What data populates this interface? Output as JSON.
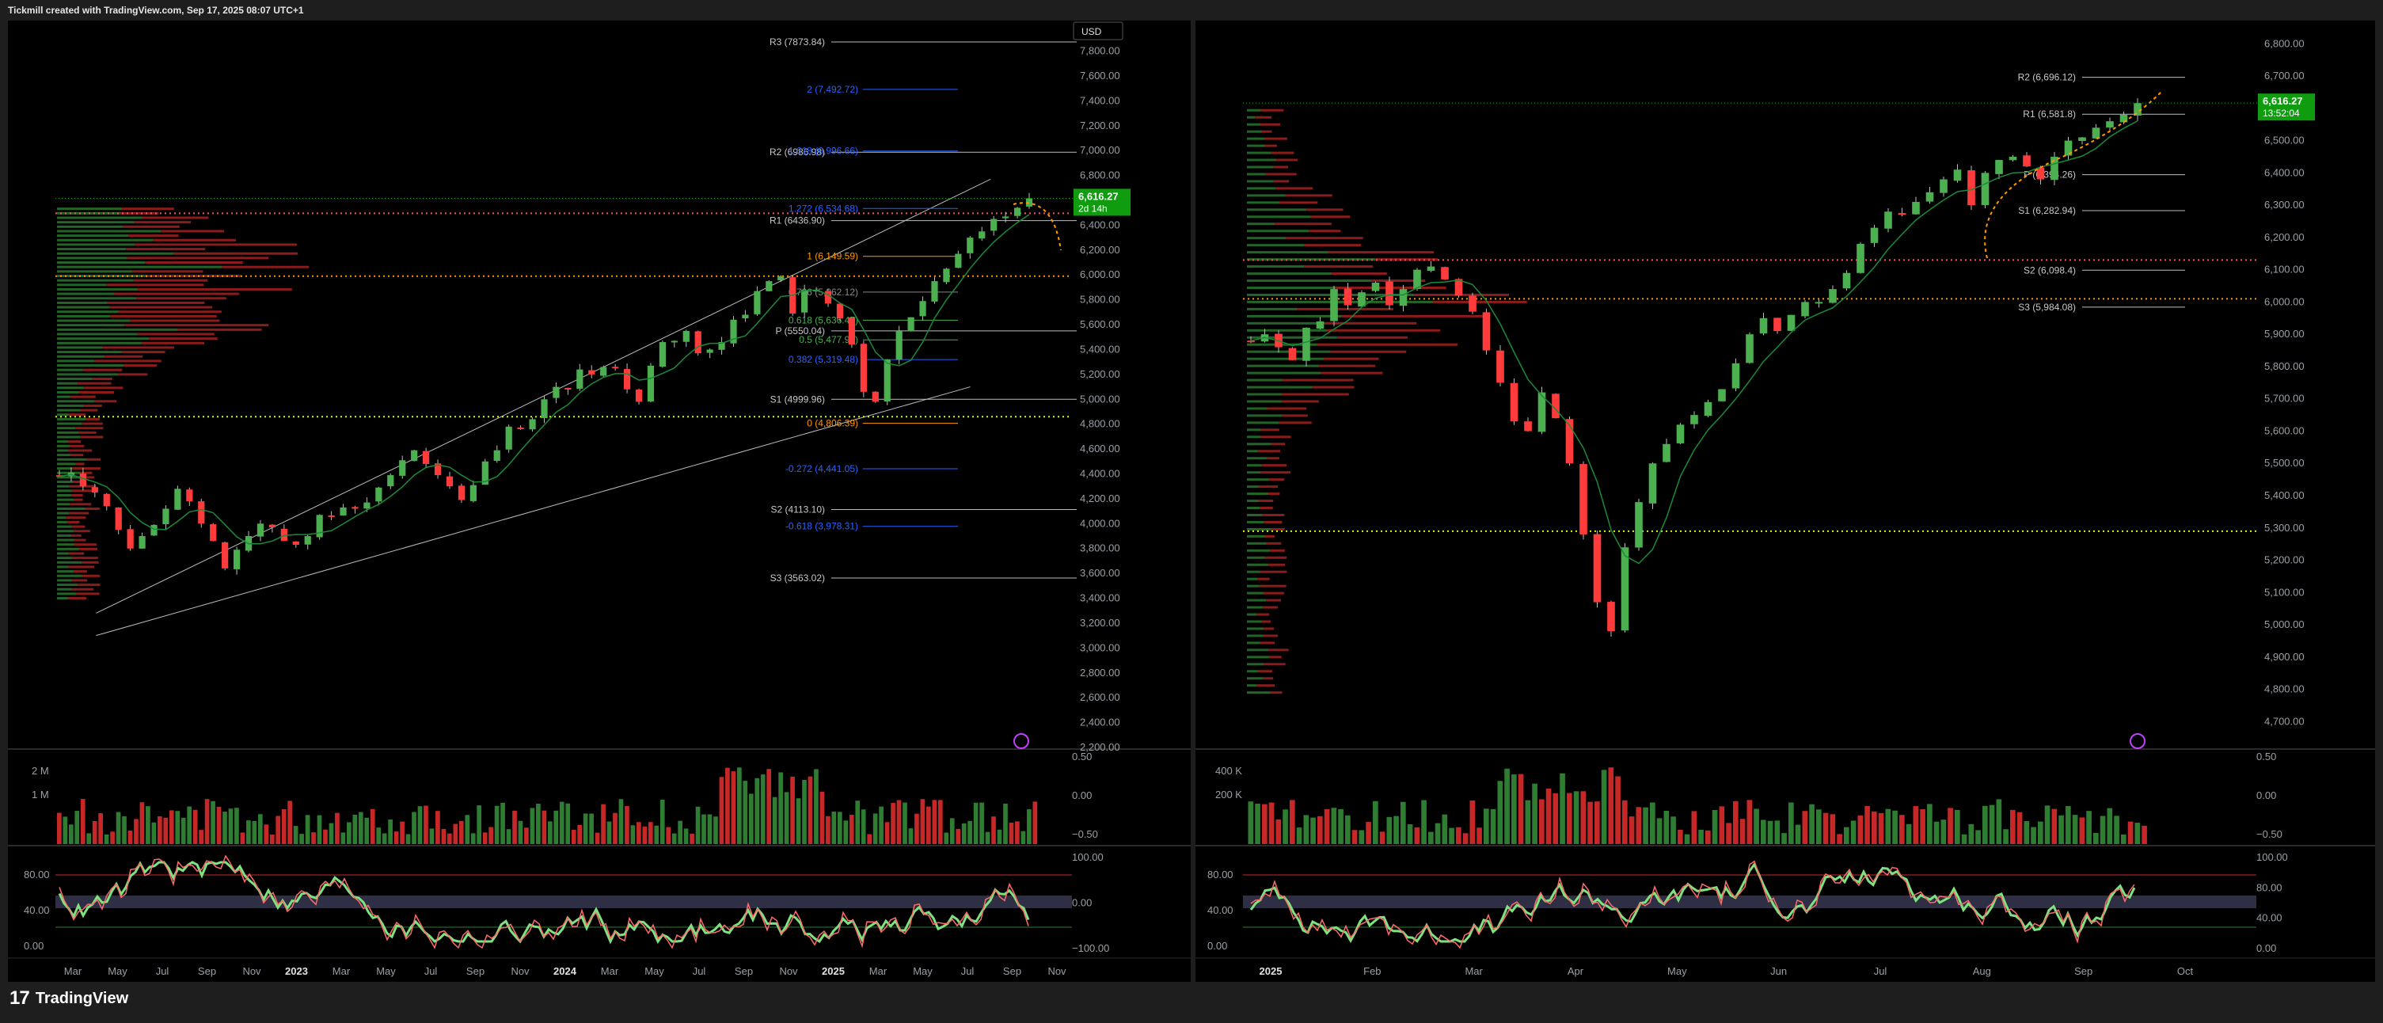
{
  "header": {
    "text": "Tickmill created with TradingView.com, Sep 17, 2025 08:07 UTC+1"
  },
  "footer": {
    "logo_glyph": "17",
    "brand": "TradingView"
  },
  "colors": {
    "bull": "#2e7d32",
    "bull_bright": "#4caf50",
    "bear": "#c62828",
    "bear_bright": "#ff3b3b",
    "orange": "#ff9800",
    "blue": "#2962ff",
    "grid_text": "#9aa0a6",
    "price_badge": "#0f9d0f"
  },
  "chart_data": [
    {
      "id": "left",
      "type": "candlestick",
      "currency_label": "USD",
      "price_badge": {
        "value": "6,616.27",
        "sub": "2d 14h",
        "price": 6616.27
      },
      "y_axis_labels": [
        "7,800.00",
        "7,600.00",
        "7,400.00",
        "7,200.00",
        "7,000.00",
        "6,800.00",
        "6,600.00",
        "6,400.00",
        "6,200.00",
        "6,000.00",
        "5,800.00",
        "5,600.00",
        "5,400.00",
        "5,200.00",
        "5,000.00",
        "4,800.00",
        "4,600.00",
        "4,400.00",
        "4,200.00",
        "4,000.00",
        "3,800.00",
        "3,600.00",
        "3,400.00",
        "3,200.00",
        "3,000.00",
        "2,800.00",
        "2,600.00",
        "2,400.00",
        "2,200.00"
      ],
      "ylim": [
        2200,
        7950
      ],
      "x_axis_labels": [
        "Mar",
        "May",
        "Jul",
        "Sep",
        "Nov",
        "2023",
        "Mar",
        "May",
        "Jul",
        "Sep",
        "Nov",
        "2024",
        "Mar",
        "May",
        "Jul",
        "Sep",
        "Nov",
        "2025",
        "Mar",
        "May",
        "Jul",
        "Sep",
        "Nov"
      ],
      "x_axis_bold": [
        "2023",
        "2024",
        "2025"
      ],
      "pivot_levels": [
        {
          "label": "R3 (7873.84)",
          "value": 7873.84,
          "color": "#bdbdbd"
        },
        {
          "label": "R2 (6986.98)",
          "value": 6986.98,
          "color": "#bdbdbd"
        },
        {
          "label": "R1 (6436.90)",
          "value": 6436.9,
          "color": "#bdbdbd"
        },
        {
          "label": "P (5550.04)",
          "value": 5550.04,
          "color": "#bdbdbd"
        },
        {
          "label": "S1 (4999.96)",
          "value": 4999.96,
          "color": "#bdbdbd"
        },
        {
          "label": "S2 (4113.10)",
          "value": 4113.1,
          "color": "#bdbdbd"
        },
        {
          "label": "S3 (3563.02)",
          "value": 3563.02,
          "color": "#bdbdbd"
        }
      ],
      "fib_levels": [
        {
          "label": "2 (7,492.72)",
          "value": 7492.72,
          "color": "#2962ff"
        },
        {
          "label": "1.618 (6,996.66)",
          "value": 6996.66,
          "color": "#2962ff"
        },
        {
          "label": "1.272 (6,534.68)",
          "value": 6534.68,
          "color": "#2962ff"
        },
        {
          "label": "1 (6,149.59)",
          "value": 6149.59,
          "color": "#ff9800"
        },
        {
          "label": "0.786 (5,862.12)",
          "value": 5862.12,
          "color": "#888888"
        },
        {
          "label": "0.618 (5,636.47)",
          "value": 5636.47,
          "color": "#4caf50"
        },
        {
          "label": "0.5 (5,477.97)",
          "value": 5477.97,
          "color": "#4caf50"
        },
        {
          "label": "0.382 (5,319.48)",
          "value": 5319.48,
          "color": "#2962ff"
        },
        {
          "label": "0 (4,806.39)",
          "value": 4806.39,
          "color": "#ff9800"
        },
        {
          "label": "-0.272 (4,441.05)",
          "value": 4441.05,
          "color": "#2962ff"
        },
        {
          "label": "-0.618 (3,978.31)",
          "value": 3978.31,
          "color": "#2962ff"
        }
      ],
      "volume_axis": [
        "2 M",
        "1 M"
      ],
      "osc_axis_left": [
        "80.00",
        "40.00",
        "0.00"
      ],
      "osc_axis_right": [
        "100.00",
        "0.00",
        "−100.00"
      ],
      "vol_axis_right": [
        "0.50",
        "0.00",
        "−0.50"
      ],
      "close_series": [
        4380,
        4410,
        4300,
        4250,
        4140,
        3950,
        3800,
        3900,
        3990,
        4120,
        4280,
        4180,
        4000,
        3860,
        3640,
        3790,
        3900,
        4000,
        3970,
        3860,
        3830,
        3900,
        4070,
        4060,
        4130,
        4120,
        4170,
        4290,
        4390,
        4510,
        4590,
        4480,
        4390,
        4300,
        4190,
        4310,
        4500,
        4590,
        4780,
        4760,
        4840,
        5000,
        5100,
        5080,
        5240,
        5200,
        5260,
        5250,
        5080,
        4980,
        5270,
        5460,
        5470,
        5550,
        5370,
        5400,
        5460,
        5640,
        5680,
        5870,
        5950,
        5990,
        5690,
        5880,
        5880,
        5770,
        5650,
        5440,
        5060,
        4980,
        5320,
        5550,
        5660,
        5790,
        5950,
        6050,
        6170,
        6300,
        6350,
        6450,
        6470,
        6540,
        6616
      ],
      "trend_channel": {
        "from": [
          0.04,
          3280
        ],
        "to": [
          0.92,
          6770
        ],
        "lower_from": [
          0.04,
          3100
        ],
        "lower_to": [
          0.9,
          5100
        ]
      },
      "hlines": [
        {
          "value": 6496,
          "color": "#ff5252",
          "style": "dotted"
        },
        {
          "value": 5990,
          "color": "#ff9800",
          "style": "dotted"
        },
        {
          "value": 4860,
          "color": "#c6ff00",
          "style": "dotted"
        }
      ]
    },
    {
      "id": "right",
      "type": "candlestick",
      "price_badge": {
        "value": "6,616.27",
        "sub": "13:52:04",
        "price": 6616.27
      },
      "y_axis_labels": [
        "6,800.00",
        "6,700.00",
        "6,600.00",
        "6,500.00",
        "6,400.00",
        "6,300.00",
        "6,200.00",
        "6,100.00",
        "6,000.00",
        "5,900.00",
        "5,800.00",
        "5,700.00",
        "5,600.00",
        "5,500.00",
        "5,400.00",
        "5,300.00",
        "5,200.00",
        "5,100.00",
        "5,000.00",
        "4,900.00",
        "4,800.00",
        "4,700.00"
      ],
      "ylim": [
        4620,
        6835
      ],
      "x_axis_labels": [
        "2025",
        "Feb",
        "Mar",
        "Apr",
        "May",
        "Jun",
        "Jul",
        "Aug",
        "Sep",
        "Oct"
      ],
      "x_axis_bold": [
        "2025"
      ],
      "pivot_levels": [
        {
          "label": "R2 (6,696.12)",
          "value": 6696.12,
          "color": "#bdbdbd"
        },
        {
          "label": "R1 (6,581.8)",
          "value": 6581.8,
          "color": "#bdbdbd"
        },
        {
          "label": "P (6,394.26)",
          "value": 6394.26,
          "color": "#bdbdbd"
        },
        {
          "label": "S1 (6,282.94)",
          "value": 6282.94,
          "color": "#bdbdbd"
        },
        {
          "label": "S2 (6,098.4)",
          "value": 6098.4,
          "color": "#bdbdbd"
        },
        {
          "label": "S3 (5,984.08)",
          "value": 5984.08,
          "color": "#bdbdbd"
        }
      ],
      "volume_axis": [
        "400 K",
        "200 K"
      ],
      "osc_axis_left": [
        "80.00",
        "40.00",
        "0.00"
      ],
      "osc_axis_right": [
        "100.00",
        "80.00",
        "40.00",
        "0.00"
      ],
      "vol_axis_right": [
        "0.50",
        "0.00",
        "−0.50"
      ],
      "close_series": [
        5880,
        5900,
        5860,
        5820,
        5920,
        5940,
        6040,
        5990,
        6030,
        6060,
        5990,
        6040,
        6100,
        6110,
        6070,
        6020,
        5970,
        5850,
        5750,
        5630,
        5600,
        5720,
        5640,
        5500,
        5280,
        5070,
        4980,
        5240,
        5380,
        5500,
        5560,
        5620,
        5650,
        5690,
        5730,
        5810,
        5900,
        5950,
        5910,
        5960,
        6000,
        6000,
        6040,
        6090,
        6180,
        6230,
        6280,
        6270,
        6310,
        6340,
        6380,
        6410,
        6300,
        6400,
        6440,
        6450,
        6420,
        6380,
        6450,
        6500,
        6510,
        6540,
        6560,
        6580,
        6616
      ],
      "hlines": [
        {
          "value": 6130,
          "color": "#ff5252",
          "style": "dotted"
        },
        {
          "value": 6010,
          "color": "#ff9800",
          "style": "dotted"
        },
        {
          "value": 5290,
          "color": "#c6ff00",
          "style": "dotted"
        }
      ]
    }
  ]
}
